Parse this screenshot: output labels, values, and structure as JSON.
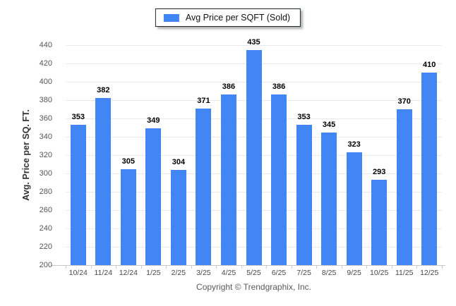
{
  "legend": {
    "label": "Avg Price per SQFT (Sold)"
  },
  "footer": {
    "copyright": "Copyright © Trendgraphix, Inc."
  },
  "chart_data": {
    "type": "bar",
    "categories": [
      "10/24",
      "11/24",
      "12/24",
      "1/25",
      "2/25",
      "3/25",
      "4/25",
      "5/25",
      "6/25",
      "7/25",
      "8/25",
      "9/25",
      "10/25",
      "11/25",
      "12/25"
    ],
    "values": [
      353,
      382,
      305,
      349,
      304,
      371,
      386,
      435,
      386,
      353,
      345,
      323,
      293,
      370,
      410
    ],
    "series_name": "Avg Price per SQFT (Sold)",
    "title": "",
    "xlabel": "",
    "ylabel": "Avg. Price per SQ. FT.",
    "ylim": [
      200,
      440
    ],
    "ytick_step": 20,
    "value_labels": true,
    "grid": true,
    "legend_position": "top-center",
    "bar_color": "#4285f4",
    "gridline_color": "#e9e9e9",
    "axis_color": "#c8c8c8"
  }
}
